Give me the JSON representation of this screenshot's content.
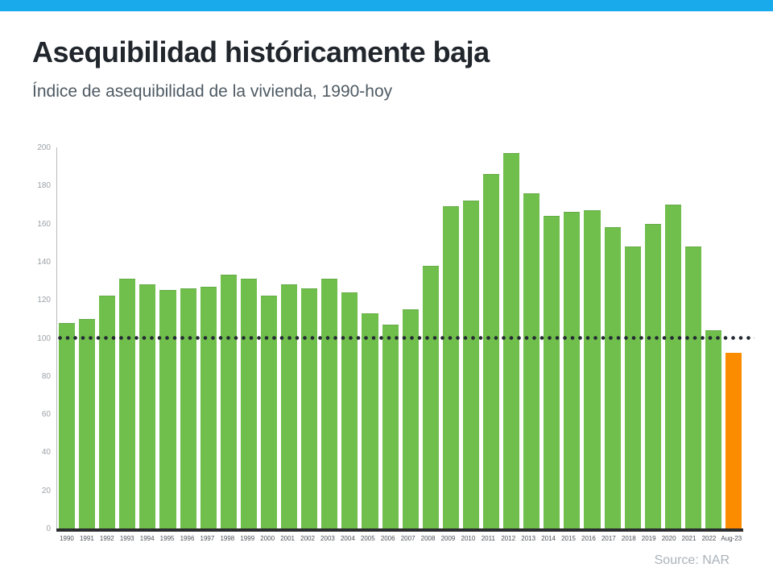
{
  "header": {
    "title": "Asequibilidad históricamente baja",
    "subtitle": "Índice de asequibilidad de la vivienda, 1990-hoy"
  },
  "footer": {
    "source": "Source: NAR"
  },
  "colors": {
    "topbar": "#18aaeb",
    "bar": "#70bf4c",
    "bar_highlight": "#fb8c00",
    "reference_dots": "#242a33",
    "axis_line": "#b8bcbe",
    "baseline": "#2b2d2e",
    "ytick_text": "#9aa0a6",
    "xtick_text": "#4a4f54",
    "title_text": "#20262c",
    "subtitle_text": "#4e5a63",
    "source_text": "#a8b2ba"
  },
  "chart_data": {
    "type": "bar",
    "title": "Asequibilidad históricamente baja",
    "subtitle": "Índice de asequibilidad de la vivienda, 1990-hoy",
    "xlabel": "",
    "ylabel": "",
    "categories": [
      "1990",
      "1991",
      "1992",
      "1993",
      "1994",
      "1995",
      "1996",
      "1997",
      "1998",
      "1999",
      "2000",
      "2001",
      "2002",
      "2003",
      "2004",
      "2005",
      "2006",
      "2007",
      "2008",
      "2009",
      "2010",
      "2011",
      "2012",
      "2013",
      "2014",
      "2015",
      "2016",
      "2017",
      "2018",
      "2019",
      "2020",
      "2021",
      "2022",
      "Aug-23"
    ],
    "values": [
      108,
      110,
      122,
      131,
      128,
      125,
      126,
      127,
      133,
      131,
      122,
      128,
      126,
      131,
      124,
      113,
      107,
      115,
      138,
      169,
      172,
      186,
      197,
      176,
      164,
      166,
      167,
      158,
      148,
      160,
      170,
      148,
      104,
      92
    ],
    "highlight_index": 33,
    "reference_line": 100,
    "ylim": [
      0,
      200
    ],
    "yticks": [
      0,
      20,
      40,
      60,
      80,
      100,
      120,
      140,
      160,
      180,
      200
    ],
    "grid": false,
    "legend": false
  }
}
